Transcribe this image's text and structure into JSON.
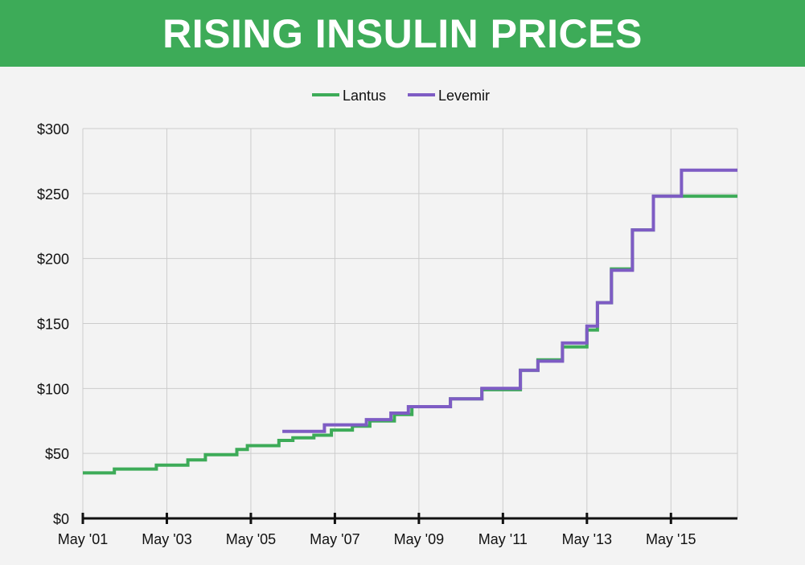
{
  "header": {
    "title": "RISING INSULIN PRICES",
    "background": "#3dab58"
  },
  "chart_data": {
    "type": "line",
    "step": true,
    "title": "RISING INSULIN PRICES",
    "xlabel": "",
    "ylabel": "",
    "ylim": [
      0,
      300
    ],
    "xlim": [
      "2001-05",
      "2016-12"
    ],
    "y_ticks": [
      "$0",
      "$50",
      "$100",
      "$150",
      "$200",
      "$250",
      "$300"
    ],
    "y_tick_values": [
      0,
      50,
      100,
      150,
      200,
      250,
      300
    ],
    "x_ticks": [
      "May '01",
      "May '03",
      "May '05",
      "May '07",
      "May '09",
      "May '11",
      "May '13",
      "May '15"
    ],
    "x_tick_values": [
      "2001-05",
      "2003-05",
      "2005-05",
      "2007-05",
      "2009-05",
      "2011-05",
      "2013-05",
      "2015-05"
    ],
    "grid": true,
    "legend_position": "top-center",
    "series": [
      {
        "name": "Lantus",
        "color": "#3dab58",
        "points": [
          [
            "2001-05",
            35
          ],
          [
            "2002-02",
            38
          ],
          [
            "2003-02",
            41
          ],
          [
            "2003-11",
            45
          ],
          [
            "2004-04",
            49
          ],
          [
            "2005-01",
            53
          ],
          [
            "2005-04",
            56
          ],
          [
            "2006-01",
            60
          ],
          [
            "2006-05",
            62
          ],
          [
            "2006-11",
            64
          ],
          [
            "2007-04",
            68
          ],
          [
            "2007-10",
            71
          ],
          [
            "2008-03",
            75
          ],
          [
            "2008-10",
            80
          ],
          [
            "2009-03",
            86
          ],
          [
            "2010-02",
            92
          ],
          [
            "2010-11",
            99
          ],
          [
            "2011-10",
            114
          ],
          [
            "2012-03",
            122
          ],
          [
            "2012-10",
            132
          ],
          [
            "2013-05",
            145
          ],
          [
            "2013-08",
            166
          ],
          [
            "2013-12",
            192
          ],
          [
            "2014-06",
            222
          ],
          [
            "2014-12",
            248
          ],
          [
            "2016-12",
            248
          ]
        ]
      },
      {
        "name": "Levemir",
        "color": "#7e5cc4",
        "points": [
          [
            "2006-02",
            67
          ],
          [
            "2007-02",
            72
          ],
          [
            "2008-02",
            76
          ],
          [
            "2008-09",
            81
          ],
          [
            "2009-02",
            86
          ],
          [
            "2010-02",
            92
          ],
          [
            "2010-11",
            100
          ],
          [
            "2011-10",
            114
          ],
          [
            "2012-03",
            121
          ],
          [
            "2012-10",
            135
          ],
          [
            "2013-05",
            148
          ],
          [
            "2013-08",
            166
          ],
          [
            "2013-12",
            191
          ],
          [
            "2014-06",
            222
          ],
          [
            "2014-12",
            248
          ],
          [
            "2015-08",
            268
          ],
          [
            "2016-12",
            268
          ]
        ]
      }
    ]
  },
  "colors": {
    "lantus": "#3dab58",
    "levemir": "#7e5cc4",
    "grid": "#cccccc",
    "axis": "#111111"
  }
}
